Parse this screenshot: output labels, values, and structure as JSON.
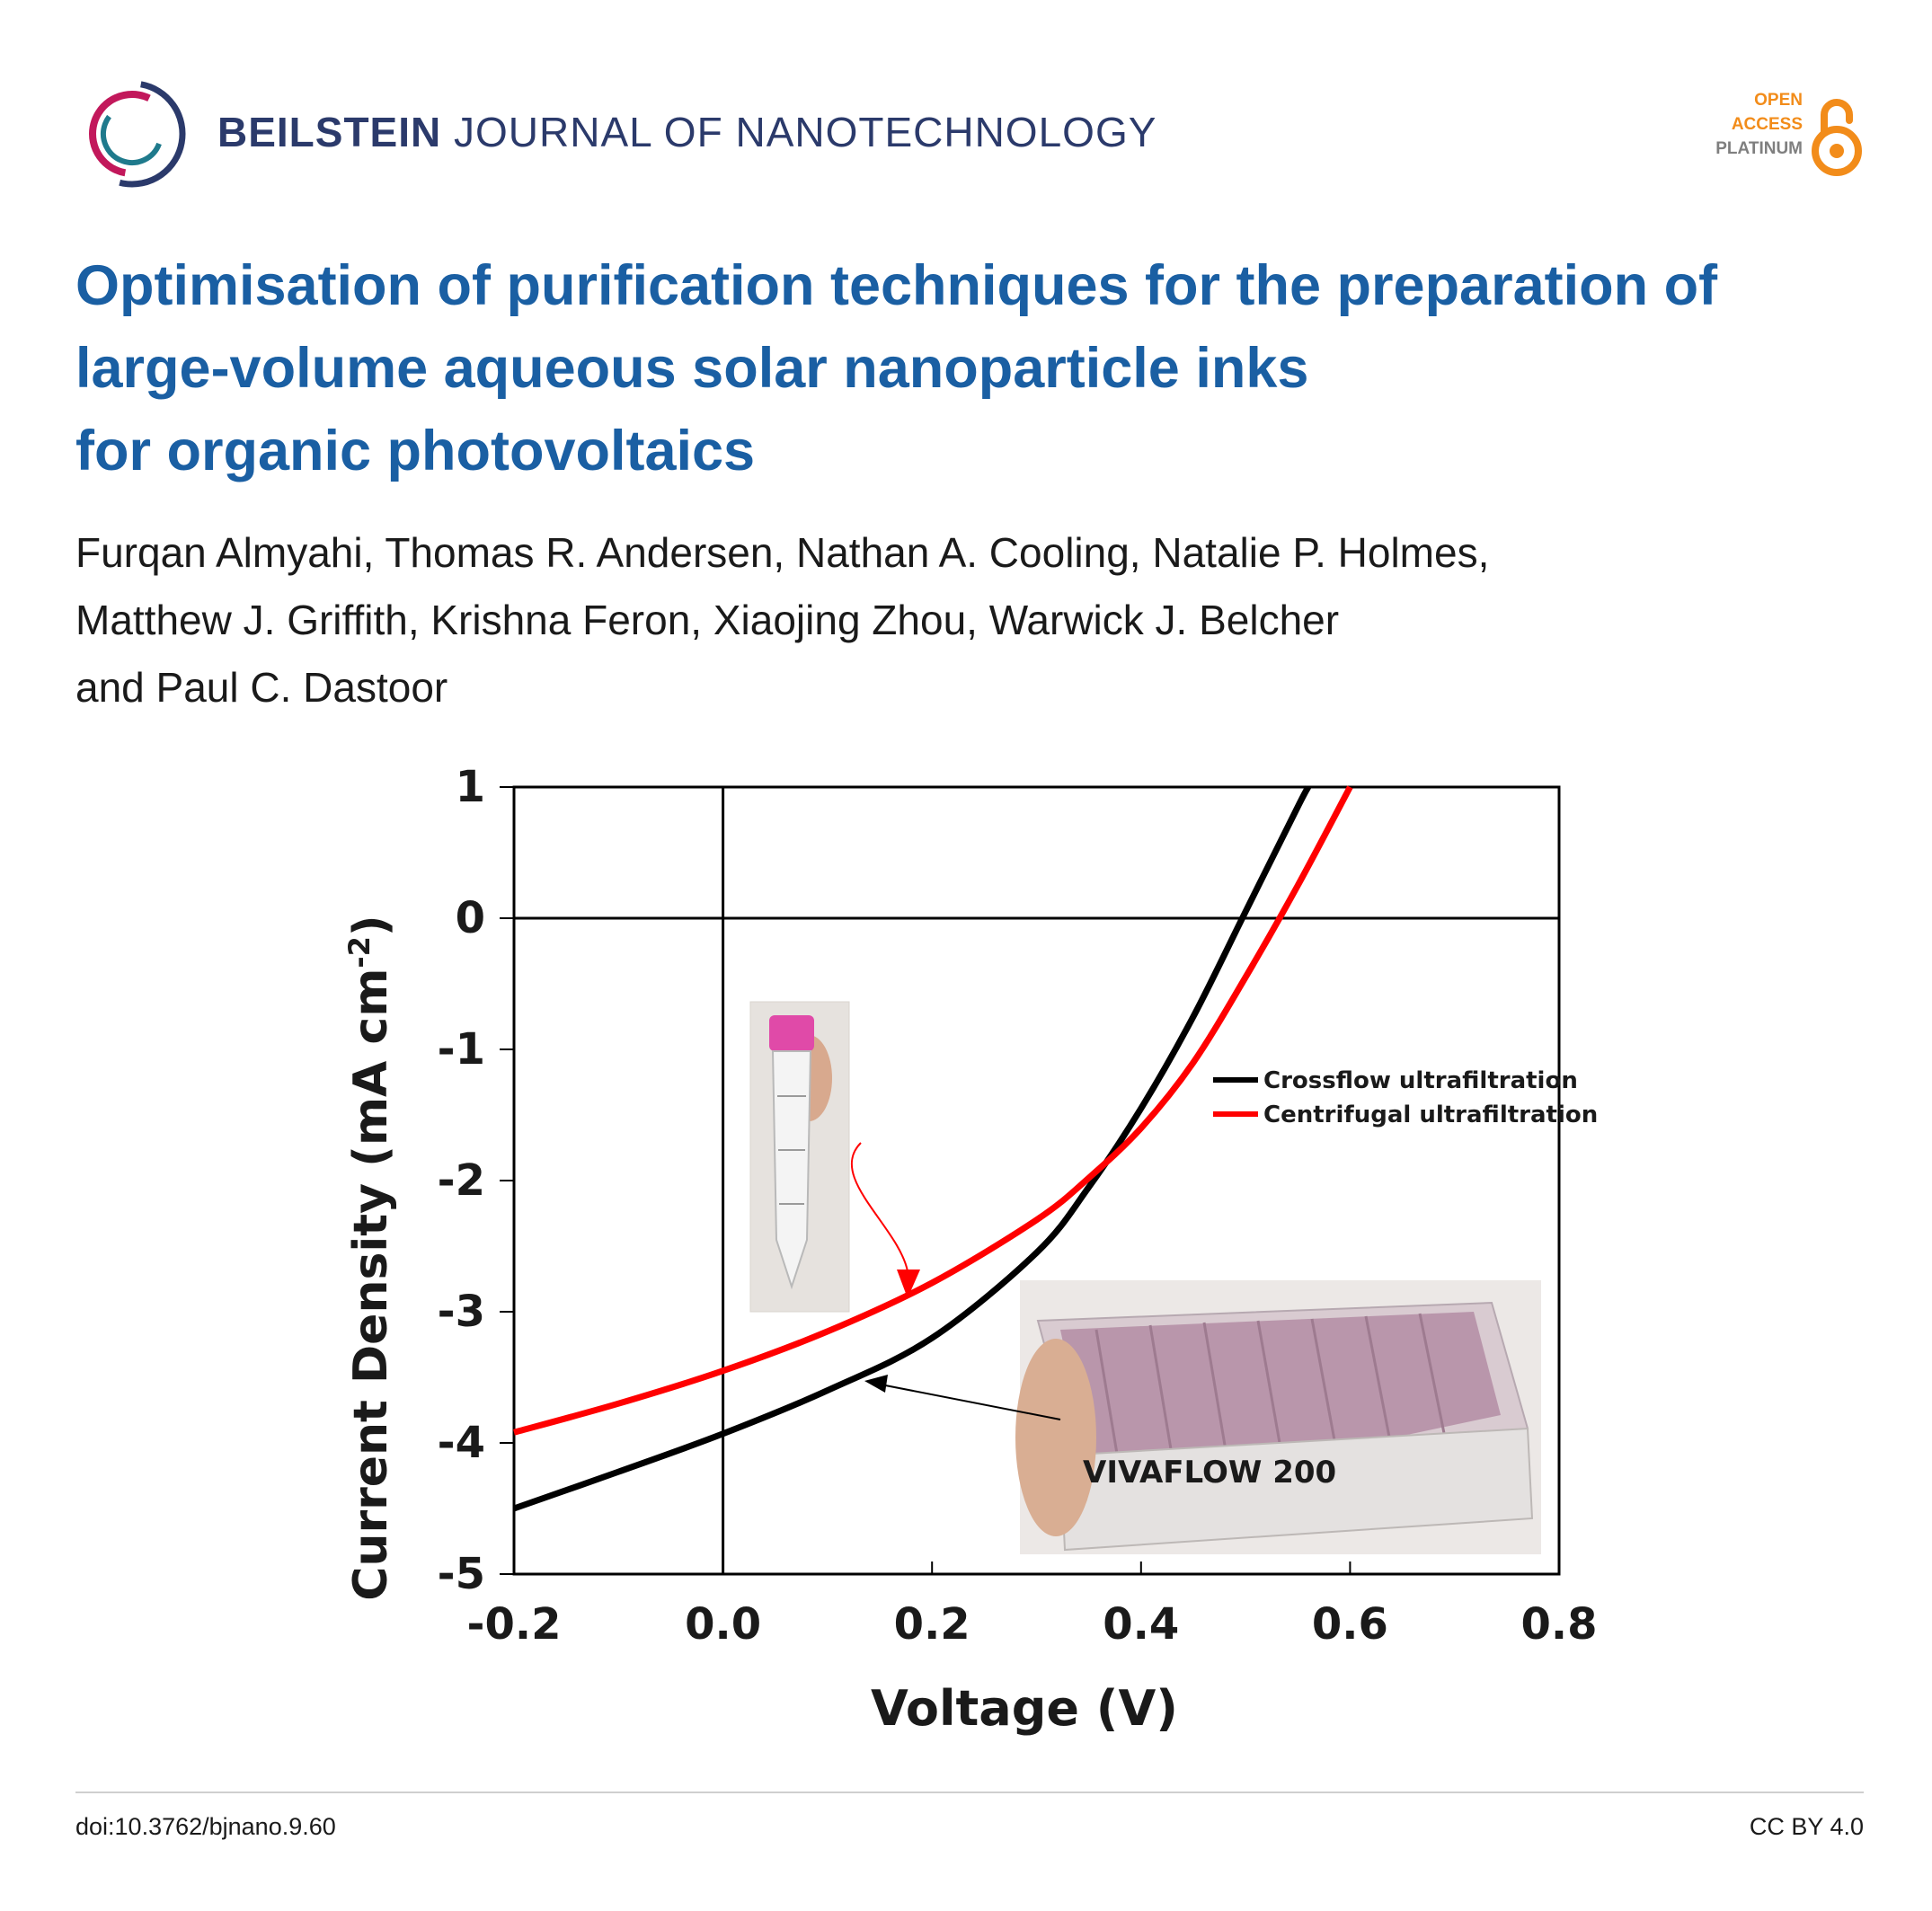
{
  "header": {
    "journal_bold": "BEILSTEIN",
    "journal_light": "JOURNAL OF NANOTECHNOLOGY",
    "badge": {
      "line1": "OPEN",
      "line2": "ACCESS",
      "line3": "PLATINUM"
    }
  },
  "article": {
    "title_lines": [
      "Optimisation of purification techniques for the preparation of",
      "large-volume aqueous solar nanoparticle inks",
      "for organic photovoltaics"
    ],
    "author_lines": [
      "Furqan Almyahi, Thomas R. Andersen, Nathan A. Cooling, Natalie P. Holmes,",
      "Matthew J. Griffith, Krishna Feron, Xiaojing Zhou, Warwick J. Belcher",
      "and Paul C. Dastoor"
    ]
  },
  "chart_data": {
    "type": "line",
    "xlabel": "Voltage (V)",
    "ylabel": "Current Density (mA cm-2)",
    "xlim": [
      -0.2,
      0.8
    ],
    "ylim": [
      -5,
      1
    ],
    "xticks": [
      "-0.2",
      "0.0",
      "0.2",
      "0.4",
      "0.6",
      "0.8"
    ],
    "yticks": [
      "1",
      "0",
      "-1",
      "-2",
      "-3",
      "-4",
      "-5"
    ],
    "grid": false,
    "legend_position": "right",
    "series": [
      {
        "name": "Crossflow ultrafiltration",
        "color": "#000000",
        "x": [
          -0.2,
          -0.1,
          0.0,
          0.1,
          0.2,
          0.3,
          0.35,
          0.4,
          0.45,
          0.5,
          0.55,
          0.56
        ],
        "y": [
          -4.5,
          -4.22,
          -3.93,
          -3.6,
          -3.2,
          -2.55,
          -2.05,
          -1.45,
          -0.75,
          0.05,
          0.85,
          1.0
        ]
      },
      {
        "name": "Centrifugal ultrafiltration",
        "color": "#ff0000",
        "x": [
          -0.2,
          -0.1,
          0.0,
          0.1,
          0.2,
          0.3,
          0.35,
          0.4,
          0.45,
          0.5,
          0.55,
          0.6
        ],
        "y": [
          -3.92,
          -3.7,
          -3.45,
          -3.15,
          -2.78,
          -2.3,
          -1.98,
          -1.6,
          -1.1,
          -0.45,
          0.25,
          1.0
        ]
      }
    ],
    "inset_label": "VIVAFLOW 200"
  },
  "footer": {
    "doi": "doi:10.3762/bjnano.9.60",
    "license": "CC BY 4.0"
  }
}
